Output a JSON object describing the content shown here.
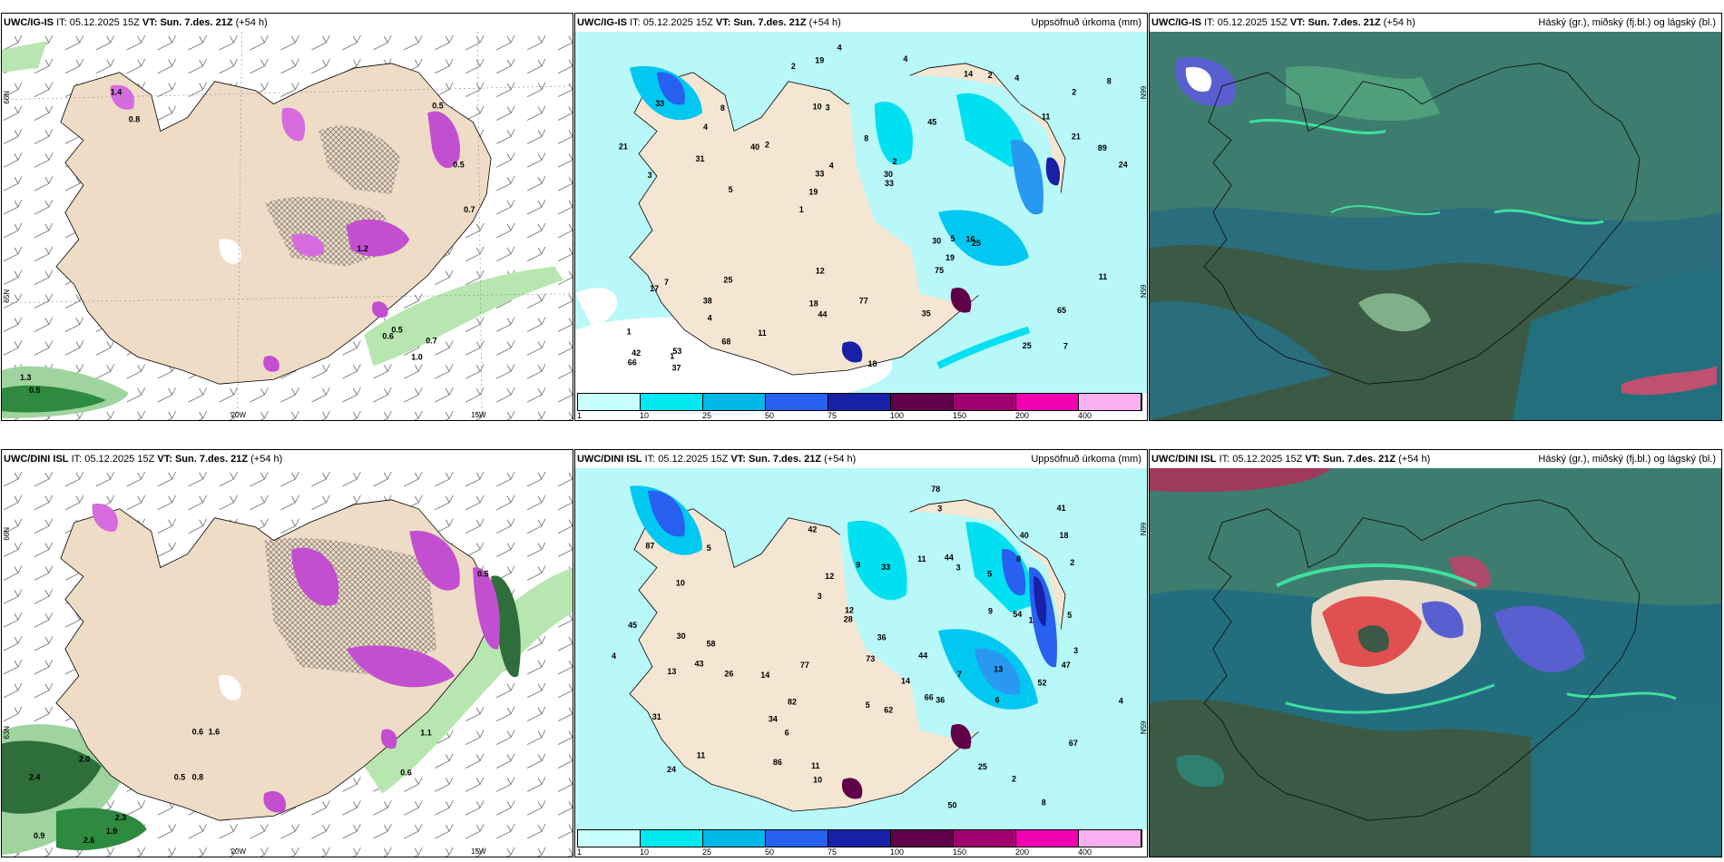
{
  "rows": [
    {
      "model": "UWC/IG-IS",
      "it_label": "IT:",
      "it_value": "05.12.2025 15Z",
      "vt_label": "VT:",
      "vt_value": "Sun. 7.des. 21Z",
      "lead": "(+54 h)"
    },
    {
      "model": "UWC/DINI ISL",
      "it_label": "IT:",
      "it_value": "05.12.2025 15Z",
      "vt_label": "VT:",
      "vt_value": "Sun. 7.des. 21Z",
      "lead": "(+54 h)"
    }
  ],
  "precip_title": "Uppsöfnuð úrkoma (mm)",
  "cloud_title": "Háský (gr.), miðský (fj.bl.) og lágský (bl.)",
  "colorbar": {
    "ticks": [
      "1",
      "10",
      "25",
      "50",
      "75",
      "100",
      "150",
      "200",
      "400"
    ],
    "colors": [
      "#c8ffff",
      "#00e8f0",
      "#00b8e8",
      "#2860f0",
      "#1820a8",
      "#600048",
      "#a0006e",
      "#f000b0",
      "#f8b0f0"
    ]
  },
  "axis_labels": {
    "lon_20w": "20W",
    "lon_15w": "15W",
    "lat_66n": "66N",
    "lat_65n": "65N",
    "lat_63n": "63N"
  },
  "snow_labels_top": [
    "0.5",
    "0.6",
    "1.0",
    "0.7",
    "0.5",
    "0.7",
    "0.5",
    "1.2",
    "1.4",
    "0.8",
    "0.5",
    "1.3"
  ],
  "snow_labels_bottom": [
    "2.4",
    "2.0",
    "0.9",
    "2.6",
    "1.9",
    "2.3",
    "0.5",
    "0.8",
    "0.6",
    "1.1",
    "0.6",
    "0.5",
    "1.6"
  ],
  "precip_labels_top": [
    "7",
    "3",
    "2",
    "1",
    "45",
    "53",
    "10",
    "8",
    "7",
    "2",
    "1",
    "4",
    "3",
    "2",
    "25",
    "33",
    "19",
    "24",
    "30",
    "21",
    "19",
    "18",
    "33",
    "8",
    "14",
    "25",
    "25",
    "65",
    "16",
    "18",
    "40",
    "31",
    "75",
    "68",
    "89",
    "30",
    "42",
    "44",
    "33",
    "17",
    "11",
    "8",
    "19",
    "35",
    "38",
    "37",
    "66",
    "77",
    "4",
    "4",
    "5",
    "21",
    "4",
    "2",
    "1",
    "4",
    "2",
    "4",
    "11",
    "12",
    "11",
    "5"
  ],
  "precip_labels_bottom": [
    "8",
    "43",
    "66",
    "87",
    "67",
    "10",
    "11",
    "14",
    "5",
    "9",
    "3",
    "2",
    "6",
    "42",
    "44",
    "31",
    "13",
    "36",
    "45",
    "24",
    "41",
    "33",
    "54",
    "4",
    "3",
    "30",
    "26",
    "73",
    "28",
    "18",
    "36",
    "13",
    "34",
    "44",
    "12",
    "52",
    "47",
    "25",
    "40",
    "50",
    "82",
    "62",
    "86",
    "78",
    "77",
    "58",
    "2",
    "3",
    "11",
    "5",
    "7",
    "5",
    "6",
    "1",
    "3",
    "4",
    "10",
    "12",
    "14",
    "9",
    "11",
    "8",
    "5"
  ]
}
